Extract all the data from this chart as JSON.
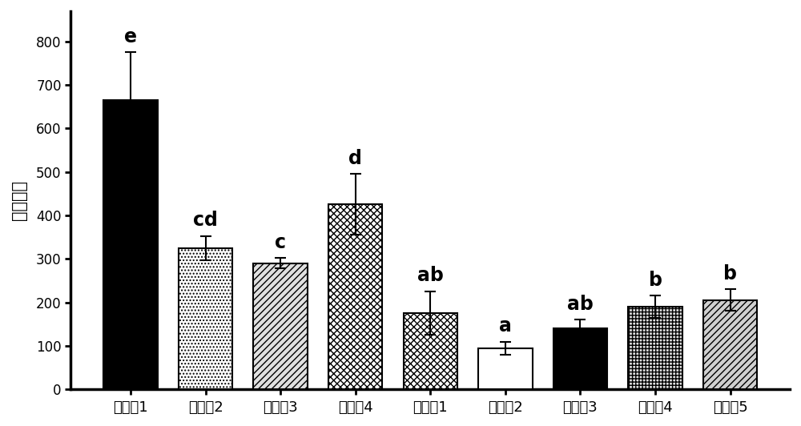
{
  "categories": [
    "实施例1",
    "实施例2",
    "实施例3",
    "实施例4",
    "对比例1",
    "对比例2",
    "对比例3",
    "对比例4",
    "对比例5"
  ],
  "values": [
    665,
    325,
    290,
    425,
    175,
    95,
    140,
    190,
    205
  ],
  "errors": [
    110,
    28,
    12,
    70,
    50,
    15,
    20,
    25,
    25
  ],
  "stat_labels": [
    "e",
    "cd",
    "c",
    "d",
    "ab",
    "a",
    "ab",
    "b",
    "b"
  ],
  "hatch_patterns": [
    "++",
    "....",
    "////",
    "xxxx",
    "xxxx",
    "vvvv",
    "////",
    "....",
    "////"
  ],
  "bar_facecolors": [
    "black",
    "white",
    "white",
    "white",
    "black",
    "white",
    "black",
    "white",
    "white"
  ],
  "bar_edgecolor": "#000000",
  "ylabel": "喙球次数",
  "ylim": [
    0,
    870
  ],
  "yticks": [
    0,
    100,
    200,
    300,
    400,
    500,
    600,
    700,
    800
  ],
  "xlabel_fontsize": 13,
  "ylabel_fontsize": 15,
  "stat_fontsize": 17,
  "tick_fontsize": 12,
  "figsize": [
    10.0,
    5.32
  ],
  "dpi": 100
}
